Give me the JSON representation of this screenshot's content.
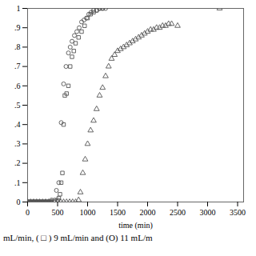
{
  "chart_data": {
    "type": "scatter",
    "xlabel": "time (min)",
    "annotations": [
      "mL/min,   (  □  ) 9 mL/min   and  (O) 11 mL/m"
    ],
    "xlim": [
      0,
      3600
    ],
    "ylim": [
      0,
      1
    ],
    "xticks": [
      0,
      500,
      1000,
      1500,
      2000,
      2500,
      3000,
      3500
    ],
    "yticks": [
      0,
      {
        "value": 0.1,
        "label": ".1"
      },
      {
        "value": 0.2,
        "label": ".2"
      },
      {
        "value": 0.3,
        "label": ".3"
      },
      {
        "value": 0.4,
        "label": ".4"
      },
      {
        "value": 0.5,
        "label": ".5"
      },
      {
        "value": 0.6,
        "label": ".6"
      },
      {
        "value": 0.7,
        "label": ".7"
      },
      {
        "value": 0.8,
        "label": ".8"
      },
      {
        "value": 0.9,
        "label": ".9"
      },
      1
    ],
    "series": [
      {
        "marker": "circle",
        "color": "#555555",
        "x": [
          0,
          10,
          20,
          30,
          40,
          50,
          60,
          70,
          80,
          90,
          100,
          110,
          120,
          130,
          140,
          150,
          160,
          170,
          180,
          190,
          200,
          210,
          220,
          230,
          240,
          250,
          260,
          270,
          280,
          290,
          300,
          310,
          320,
          330,
          340,
          350,
          360,
          370,
          380,
          390,
          400,
          450,
          480,
          520,
          560,
          600,
          640,
          680,
          710,
          740,
          780,
          820,
          860,
          900,
          940,
          980,
          1020,
          1060,
          1100,
          1150,
          1200,
          1250,
          1300
        ],
        "values": [
          0,
          0,
          0,
          0,
          0,
          0,
          0,
          0,
          0,
          0,
          0,
          0,
          0,
          0,
          0,
          0,
          0,
          0,
          0,
          0,
          0,
          0,
          0,
          0,
          0,
          0,
          0,
          0,
          0,
          0,
          0,
          0,
          0,
          0,
          0,
          0,
          0,
          0,
          0,
          0,
          0.01,
          0.01,
          0.06,
          0.1,
          0.41,
          0.61,
          0.7,
          0.77,
          0.8,
          0.83,
          0.86,
          0.88,
          0.9,
          0.93,
          0.94,
          0.95,
          0.97,
          0.98,
          0.99,
          0.99,
          1.0,
          1.0,
          1.0
        ]
      },
      {
        "marker": "square",
        "color": "#555555",
        "x": [
          0,
          50,
          100,
          150,
          200,
          250,
          300,
          350,
          400,
          450,
          500,
          520,
          540,
          560,
          580,
          600,
          620,
          650,
          680,
          710,
          740,
          770,
          800,
          850,
          900,
          950,
          1000,
          1050,
          1100,
          1150,
          1200,
          1250
        ],
        "values": [
          0,
          0,
          0,
          0,
          0,
          0,
          0,
          0,
          0,
          0,
          0.01,
          0.02,
          0.04,
          0.1,
          0.15,
          0.4,
          0.55,
          0.56,
          0.6,
          0.7,
          0.75,
          0.78,
          0.82,
          0.85,
          0.88,
          0.91,
          0.95,
          0.97,
          0.98,
          0.99,
          1.0,
          1.0
        ]
      },
      {
        "marker": "triangle",
        "color": "#555555",
        "x": [
          0,
          50,
          100,
          150,
          200,
          250,
          300,
          350,
          400,
          450,
          500,
          550,
          600,
          650,
          700,
          750,
          800,
          850,
          880,
          920,
          960,
          1000,
          1050,
          1100,
          1150,
          1200,
          1250,
          1300,
          1350,
          1400,
          1450,
          1500,
          1550,
          1600,
          1650,
          1700,
          1750,
          1800,
          1850,
          1900,
          1950,
          2000,
          2050,
          2100,
          2150,
          2200,
          2250,
          2300,
          2350,
          2400,
          2500,
          3200
        ],
        "values": [
          0,
          0,
          0,
          0,
          0,
          0,
          0,
          0,
          0,
          0,
          0,
          0,
          0,
          0,
          0,
          0,
          0,
          0.01,
          0.05,
          0.15,
          0.22,
          0.3,
          0.37,
          0.42,
          0.48,
          0.55,
          0.59,
          0.65,
          0.7,
          0.74,
          0.76,
          0.78,
          0.79,
          0.8,
          0.81,
          0.82,
          0.83,
          0.84,
          0.85,
          0.86,
          0.87,
          0.88,
          0.89,
          0.89,
          0.9,
          0.9,
          0.91,
          0.91,
          0.92,
          0.92,
          0.91,
          1.0
        ]
      }
    ]
  }
}
